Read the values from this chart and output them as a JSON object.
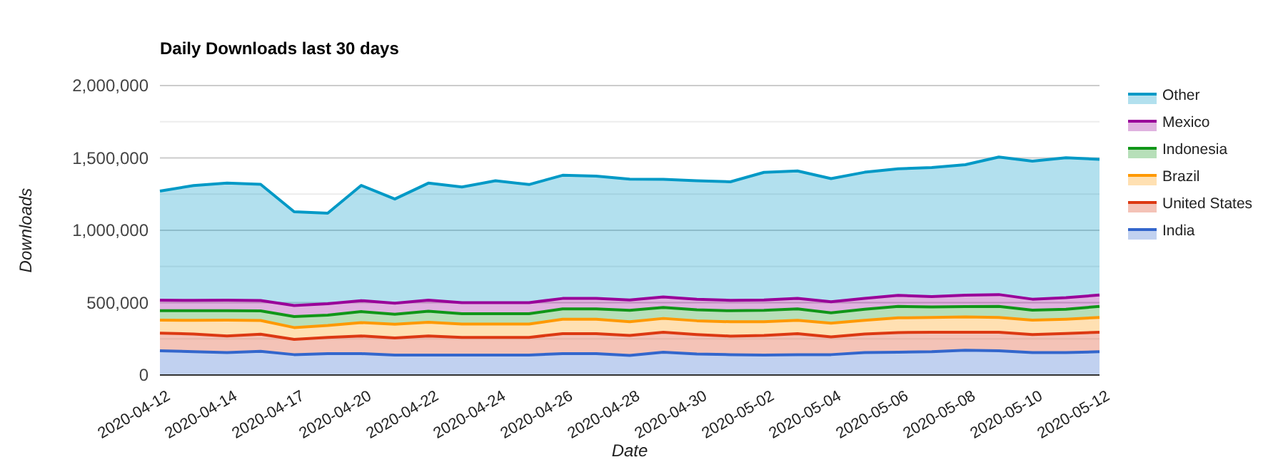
{
  "chart_data": {
    "type": "area",
    "stacked": true,
    "title": "Daily Downloads last 30 days",
    "xlabel": "Date",
    "ylabel": "Downloads",
    "categories": [
      "2020-04-12",
      null,
      "2020-04-14",
      null,
      "2020-04-17",
      null,
      "2020-04-20",
      null,
      "2020-04-22",
      null,
      "2020-04-24",
      null,
      "2020-04-26",
      null,
      "2020-04-28",
      null,
      "2020-04-30",
      null,
      "2020-05-02",
      null,
      "2020-05-04",
      null,
      "2020-05-06",
      null,
      "2020-05-08",
      null,
      "2020-05-10",
      null,
      "2020-05-12"
    ],
    "series": [
      {
        "name": "India",
        "color": "#3366cc",
        "values": [
          168000,
          161000,
          155000,
          164000,
          141000,
          148000,
          148000,
          138000,
          138000,
          138000,
          138000,
          138000,
          148000,
          148000,
          135000,
          158000,
          145000,
          141000,
          138000,
          141000,
          141000,
          155000,
          158000,
          161000,
          171000,
          168000,
          155000,
          155000,
          161000
        ]
      },
      {
        "name": "United States",
        "color": "#dc3912",
        "values": [
          122000,
          122000,
          115000,
          118000,
          105000,
          112000,
          122000,
          118000,
          132000,
          122000,
          122000,
          122000,
          138000,
          138000,
          138000,
          138000,
          135000,
          128000,
          135000,
          145000,
          122000,
          128000,
          135000,
          135000,
          125000,
          128000,
          125000,
          132000,
          135000
        ]
      },
      {
        "name": "Brazil",
        "color": "#ff9900",
        "values": [
          89000,
          95000,
          109000,
          95000,
          82000,
          82000,
          92000,
          95000,
          95000,
          92000,
          92000,
          92000,
          99000,
          99000,
          95000,
          95000,
          95000,
          99000,
          95000,
          92000,
          95000,
          95000,
          102000,
          102000,
          105000,
          102000,
          99000,
          99000,
          102000
        ]
      },
      {
        "name": "Indonesia",
        "color": "#109618",
        "values": [
          66000,
          66000,
          66000,
          66000,
          76000,
          72000,
          76000,
          69000,
          76000,
          72000,
          72000,
          72000,
          72000,
          72000,
          79000,
          76000,
          76000,
          76000,
          79000,
          79000,
          72000,
          76000,
          79000,
          72000,
          72000,
          76000,
          69000,
          69000,
          76000
        ]
      },
      {
        "name": "Mexico",
        "color": "#990099",
        "values": [
          72000,
          72000,
          72000,
          72000,
          76000,
          79000,
          76000,
          76000,
          76000,
          76000,
          76000,
          76000,
          72000,
          72000,
          72000,
          72000,
          72000,
          72000,
          72000,
          72000,
          76000,
          76000,
          76000,
          72000,
          79000,
          82000,
          76000,
          79000,
          79000
        ]
      },
      {
        "name": "Other",
        "color": "#0099c6",
        "values": [
          754000,
          793000,
          809000,
          803000,
          648000,
          625000,
          796000,
          720000,
          809000,
          799000,
          842000,
          816000,
          851000,
          845000,
          835000,
          813000,
          819000,
          819000,
          881000,
          881000,
          851000,
          871000,
          875000,
          891000,
          901000,
          950000,
          954000,
          967000,
          937000
        ]
      }
    ],
    "ylim": [
      0,
      2000000
    ],
    "yticks": [
      0,
      {
        "value": 250000,
        "label": null
      },
      {
        "value": 500000,
        "label": "500,000"
      },
      {
        "value": 750000,
        "label": null
      },
      {
        "value": 1000000,
        "label": "1,000,000"
      },
      {
        "value": 1250000,
        "label": null
      },
      {
        "value": 1500000,
        "label": "1,500,000"
      },
      {
        "value": 1750000,
        "label": null
      },
      {
        "value": 2000000,
        "label": "2,000,000"
      }
    ],
    "grid": "y",
    "legend": "right"
  }
}
